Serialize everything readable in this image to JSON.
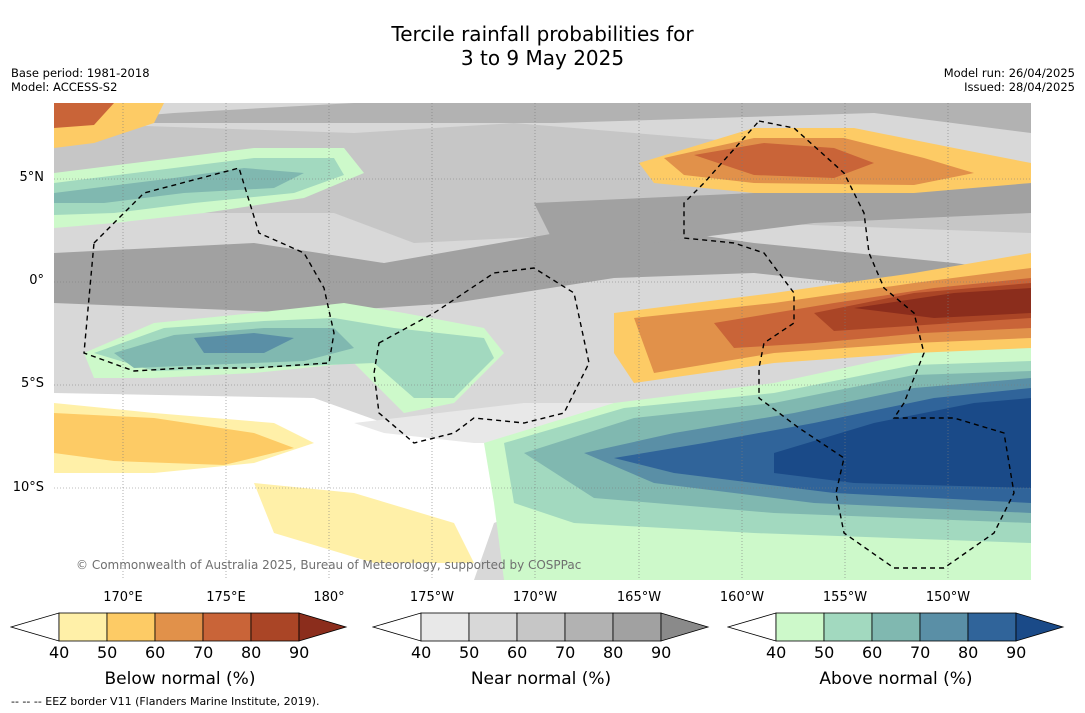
{
  "title_line1": "Tercile rainfall probabilities for",
  "title_line2": "3 to 9 May 2025",
  "meta": {
    "base_period": "Base period: 1981-2018",
    "model": "Model: ACCESS-S2",
    "model_run": "Model run: 26/04/2025",
    "issued": "Issued: 28/04/2025"
  },
  "copyright": "© Commonwealth of Australia 2025, Bureau of Meteorology, supported by COSPPac",
  "lat_labels": [
    "5°N",
    "0°",
    "5°S",
    "10°S"
  ],
  "lon_labels": [
    "170°E",
    "175°E",
    "180°",
    "175°W",
    "170°W",
    "165°W",
    "160°W",
    "155°W",
    "150°W"
  ],
  "colorbars": [
    {
      "label": "Below normal (%)",
      "ticks": [
        "40",
        "50",
        "60",
        "70",
        "80",
        "90"
      ],
      "colors": [
        "#ffffff",
        "#fff0a8",
        "#fdcb65",
        "#e1914a",
        "#c96438",
        "#aa4526",
        "#8b2d1c"
      ]
    },
    {
      "label": "Near normal (%)",
      "ticks": [
        "40",
        "50",
        "60",
        "70",
        "80",
        "90"
      ],
      "colors": [
        "#ffffff",
        "#e8e8e8",
        "#d8d8d8",
        "#c6c6c6",
        "#b2b2b2",
        "#a1a1a1",
        "#8a8a8a"
      ]
    },
    {
      "label": "Above normal (%)",
      "ticks": [
        "40",
        "50",
        "60",
        "70",
        "80",
        "90"
      ],
      "colors": [
        "#ffffff",
        "#cdf9ca",
        "#a2d9bf",
        "#80b8b0",
        "#5a8fa6",
        "#30649a",
        "#1a4a88"
      ]
    }
  ],
  "footer": "--  --  -- EEZ border V11 (Flanders Marine Institute, 2019)."
}
